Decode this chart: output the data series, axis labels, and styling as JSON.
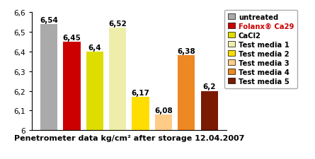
{
  "categories": [
    "untreated",
    "Folanx® Ca29",
    "CaCl2",
    "Test media 1",
    "Test media 2",
    "Test media 3",
    "Test media 4",
    "Test media 5"
  ],
  "values": [
    6.54,
    6.45,
    6.4,
    6.52,
    6.17,
    6.08,
    6.38,
    6.2
  ],
  "bar_colors": [
    "#aaaaaa",
    "#cc0000",
    "#dddd00",
    "#eeeeaa",
    "#ffdd00",
    "#ffcc88",
    "#ee8822",
    "#7a1a00"
  ],
  "value_labels": [
    "6,54",
    "6,45",
    "6,4",
    "6,52",
    "6,17",
    "6,08",
    "6,38",
    "6,2"
  ],
  "legend_labels": [
    "untreated",
    "Folanx® Ca29",
    "CaCl2",
    "Test media 1",
    "Test media 2",
    "Test media 3",
    "Test media 4",
    "Test media 5"
  ],
  "legend_colors": [
    "#aaaaaa",
    "#cc0000",
    "#dddd00",
    "#eeeeaa",
    "#ffdd00",
    "#ffcc88",
    "#ee8822",
    "#7a1a00"
  ],
  "xlabel": "Penetrometer data kg/cm² after storage 12.04.2007",
  "ymin": 6.0,
  "ymax": 6.6,
  "yticks": [
    6.0,
    6.1,
    6.2,
    6.3,
    6.4,
    6.5,
    6.6
  ],
  "ytick_labels": [
    "6",
    "6,1",
    "6,2",
    "6,3",
    "6,4",
    "6,5",
    "6,6"
  ]
}
